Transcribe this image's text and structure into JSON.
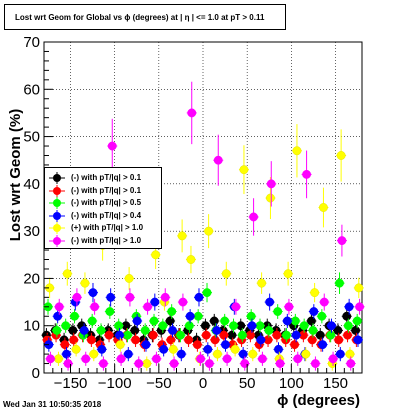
{
  "title": "Lost wrt Geom for Global vs ϕ (degrees) at | η | <= 1.0 at pT > 0.11",
  "footer_timestamp": "Wed Jan 31 10:50:35 2018",
  "chart_data": {
    "type": "scatter",
    "xlabel": "ϕ (degrees)",
    "ylabel": "Lost wrt Geom (%)",
    "xlim": [
      -180,
      180
    ],
    "ylim": [
      0,
      70
    ],
    "xticks": [
      -150,
      -100,
      -50,
      0,
      50,
      100,
      150
    ],
    "xtick_labels": [
      "−150",
      "−100",
      "−50",
      "0",
      "50",
      "100",
      "150"
    ],
    "yticks": [
      0,
      10,
      20,
      30,
      40,
      50,
      60,
      70
    ],
    "ytick_labels": [
      "0",
      "10",
      "20",
      "30",
      "40",
      "50",
      "60",
      "70"
    ],
    "legend_position": "left-middle",
    "series": [
      {
        "name": "(-) with pT/|q| > 0.1",
        "color": "#000000",
        "marker": "circle",
        "x": [
          -175,
          -165,
          -155,
          -145,
          -135,
          -125,
          -115,
          -105,
          -95,
          -85,
          -75,
          -65,
          -55,
          -45,
          -35,
          -25,
          -15,
          -5,
          5,
          15,
          25,
          35,
          45,
          55,
          65,
          75,
          85,
          95,
          105,
          115,
          125,
          135,
          145,
          155,
          165,
          175
        ],
        "y": [
          8,
          9,
          7,
          9,
          10,
          8,
          7,
          9,
          8,
          10,
          9,
          7,
          8,
          9,
          11,
          8,
          9,
          7,
          10,
          11,
          9,
          8,
          10,
          9,
          8,
          10,
          9,
          8,
          10,
          9,
          11,
          8,
          10,
          9,
          12,
          9
        ]
      },
      {
        "name": "(-) with pT/|q| > 0.1",
        "color": "#ff0000",
        "marker": "circle",
        "x": [
          -175,
          -165,
          -155,
          -145,
          -135,
          -125,
          -115,
          -105,
          -95,
          -85,
          -75,
          -65,
          -55,
          -45,
          -35,
          -25,
          -15,
          -5,
          5,
          15,
          25,
          35,
          45,
          55,
          65,
          75,
          85,
          95,
          105,
          115,
          125,
          135,
          145,
          155,
          165,
          175
        ],
        "y": [
          7,
          8,
          6,
          7,
          8,
          7,
          6,
          8,
          7,
          8,
          7,
          6,
          8,
          6,
          7,
          8,
          7,
          6,
          8,
          7,
          8,
          6,
          7,
          8,
          6,
          7,
          8,
          7,
          6,
          8,
          7,
          6,
          8,
          7,
          8,
          7
        ]
      },
      {
        "name": "(-) with pT/|q| > 0.5",
        "color": "#00ff00",
        "marker": "circle",
        "x": [
          -175,
          -165,
          -155,
          -145,
          -135,
          -125,
          -115,
          -105,
          -95,
          -85,
          -75,
          -65,
          -55,
          -45,
          -35,
          -25,
          -15,
          -5,
          5,
          15,
          25,
          35,
          45,
          55,
          65,
          75,
          85,
          95,
          105,
          115,
          125,
          135,
          145,
          155,
          165,
          175
        ],
        "y": [
          14,
          9,
          10,
          12,
          8,
          11,
          9,
          13,
          10,
          8,
          12,
          9,
          11,
          10,
          13,
          8,
          10,
          12,
          17,
          9,
          11,
          10,
          8,
          12,
          10,
          9,
          13,
          8,
          11,
          10,
          9,
          12,
          8,
          19,
          10,
          11
        ]
      },
      {
        "name": "(-) with pT/|q| > 0.4",
        "color": "#0000ff",
        "marker": "circle",
        "x": [
          -175,
          -165,
          -155,
          -145,
          -135,
          -125,
          -115,
          -105,
          -95,
          -85,
          -75,
          -65,
          -55,
          -45,
          -35,
          -25,
          -15,
          -5,
          5,
          15,
          25,
          35,
          45,
          55,
          65,
          75,
          85,
          95,
          105,
          115,
          125,
          135,
          145,
          155,
          165,
          175
        ],
        "y": [
          6,
          12,
          4,
          15,
          9,
          17,
          5,
          16,
          8,
          4,
          11,
          6,
          15,
          5,
          9,
          4,
          12,
          16,
          5,
          9,
          6,
          14,
          4,
          10,
          7,
          15,
          5,
          11,
          8,
          4,
          13,
          6,
          10,
          4,
          14,
          7
        ]
      },
      {
        "name": "(+) with pT/|q| > 1.0",
        "color": "#ffff00",
        "marker": "circle",
        "x": [
          -175,
          -165,
          -155,
          -145,
          -135,
          -125,
          -115,
          -105,
          -95,
          -85,
          -75,
          -65,
          -55,
          -45,
          -35,
          -25,
          -15,
          -5,
          5,
          15,
          25,
          35,
          45,
          55,
          65,
          75,
          85,
          95,
          105,
          115,
          125,
          135,
          145,
          155,
          165,
          175
        ],
        "y": [
          18,
          3,
          21,
          5,
          19,
          4,
          27,
          34,
          6,
          20,
          36,
          2,
          25,
          15,
          5,
          29,
          24,
          3,
          30,
          4,
          21,
          5,
          43,
          4,
          19,
          37,
          3,
          21,
          47,
          4,
          17,
          35,
          2,
          46,
          4,
          18
        ]
      },
      {
        "name": "(-) with pT/|q| > 1.0",
        "color": "#ff00ff",
        "marker": "circle",
        "x": [
          -175,
          -165,
          -155,
          -145,
          -135,
          -125,
          -115,
          -105,
          -95,
          -85,
          -75,
          -65,
          -55,
          -45,
          -35,
          -25,
          -15,
          -5,
          5,
          15,
          25,
          35,
          45,
          55,
          65,
          75,
          85,
          95,
          105,
          115,
          125,
          135,
          145,
          155,
          165,
          175
        ],
        "y": [
          3,
          14,
          2,
          16,
          3,
          14,
          2,
          48,
          3,
          16,
          2,
          14,
          3,
          16,
          2,
          15,
          55,
          3,
          2,
          45,
          3,
          14,
          2,
          33,
          3,
          40,
          2,
          14,
          3,
          42,
          2,
          15,
          3,
          28,
          2,
          14
        ]
      }
    ]
  }
}
